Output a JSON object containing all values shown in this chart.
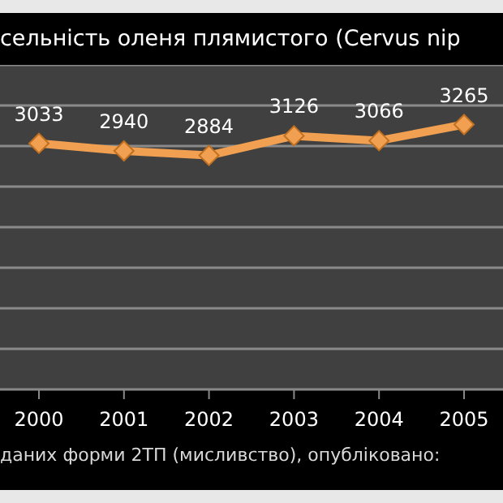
{
  "chart_data": {
    "type": "line",
    "title": "сельність оленя плямистого (Cervus nip",
    "annotations": [
      "даних форми 2ТП (мисливство), опубліковано:"
    ],
    "categories": [
      "2000",
      "2001",
      "2002",
      "2003",
      "2004",
      "2005"
    ],
    "series": [
      {
        "color": "#f0a050",
        "values": [
          3033,
          2940,
          2884,
          3126,
          3066,
          3265
        ]
      }
    ],
    "ylim": [
      0,
      4000
    ],
    "yticks": [
      {
        "value": 0,
        "label": null
      },
      {
        "value": 500,
        "label": null
      },
      {
        "value": 1000,
        "label": null
      },
      {
        "value": 1500,
        "label": null
      },
      {
        "value": 2000,
        "label": null
      },
      {
        "value": 2500,
        "label": null
      },
      {
        "value": 3000,
        "label": null
      },
      {
        "value": 3500,
        "label": null
      },
      {
        "value": 4000,
        "label": null
      }
    ],
    "grid": "y",
    "tick_labels": "x",
    "data_labels": true,
    "marker": "diamond",
    "line_style": "solid",
    "legend": false
  }
}
